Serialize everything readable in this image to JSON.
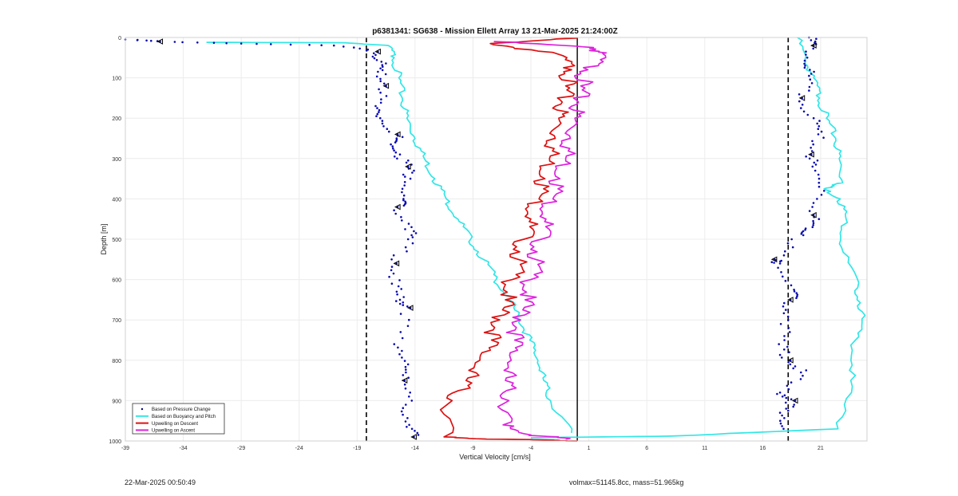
{
  "chart_data": {
    "type": "line",
    "title": "p6381341: SG638 - Mission Ellett Array 13 21-Mar-2025 21:24:00Z",
    "xlabel": "Vertical Velocity [cm/s]",
    "ylabel": "Depth [m]",
    "xlim": [
      -39,
      25
    ],
    "ylim": [
      0,
      1000
    ],
    "y_reversed": true,
    "grid": true,
    "x_ticks": [
      "-39",
      "-34",
      "-29",
      "-24",
      "-19",
      "-14",
      "-9",
      "-4",
      "1",
      "6",
      "11",
      "16",
      "21"
    ],
    "y_ticks": [
      "0",
      "100",
      "200",
      "300",
      "400",
      "500",
      "600",
      "700",
      "800",
      "900",
      "1000"
    ],
    "legend_position": "bottom-left",
    "legend": [
      {
        "label": "Based on Pressure Change",
        "color": "#000080",
        "style": "dot"
      },
      {
        "label": "Based on Buoyancy and Pitch",
        "color": "#33e6e6",
        "style": "line"
      },
      {
        "label": "Upwelling on Descent",
        "color": "#dd1111",
        "style": "line"
      },
      {
        "label": "Upwelling on Ascent",
        "color": "#dd22dd",
        "style": "line"
      }
    ],
    "reference_lines": {
      "dashed": [
        -18.2,
        18.2
      ],
      "solid": [
        0
      ]
    },
    "series": [
      {
        "name": "Based on Buoyancy and Pitch",
        "role": "buoyancy-descent",
        "color": "#33e6e6",
        "x": [
          -32,
          -20,
          -16.3,
          -15.8,
          -15.4,
          -15.1,
          -14.7,
          -14.0,
          -13.2,
          -12.3,
          -11.3,
          -10.3,
          -9.2,
          -8.1,
          -7.0,
          -5.9,
          -4.9,
          -4.1,
          -3.4,
          -2.9,
          -2.3,
          -0.5
        ],
        "y": [
          12,
          13,
          20,
          50,
          100,
          150,
          200,
          250,
          300,
          350,
          400,
          450,
          500,
          550,
          600,
          650,
          700,
          750,
          800,
          850,
          900,
          980
        ]
      },
      {
        "name": "Based on Buoyancy and Pitch",
        "role": "buoyancy-ascent",
        "color": "#33e6e6",
        "x": [
          19.0,
          19.7,
          20.4,
          20.9,
          21.5,
          22.3,
          22.6,
          22.9,
          21.3,
          22.7,
          23.2,
          22.8,
          24.2,
          24.6,
          24.0,
          23.6,
          22.5,
          8,
          -4
        ],
        "y": [
          0,
          60,
          100,
          150,
          200,
          250,
          300,
          360,
          375,
          400,
          450,
          520,
          620,
          680,
          750,
          850,
          970,
          988,
          992
        ]
      },
      {
        "name": "Upwelling on Descent",
        "role": "upwelling-descent",
        "color": "#dd1111",
        "x": [
          0.0,
          -7.5,
          -1.8,
          -0.5,
          -1.0,
          -1.3,
          -1.6,
          -1.9,
          -2.4,
          -2.8,
          -3.3,
          -4.0,
          -4.6,
          -5.1,
          -5.6,
          -6.2,
          -6.7,
          -7.4,
          -8.4,
          -9.6,
          -10.8,
          -11.5,
          -8.0,
          -2.0,
          0.0
        ],
        "y": [
          0,
          15,
          40,
          80,
          120,
          160,
          200,
          250,
          300,
          350,
          400,
          450,
          500,
          550,
          600,
          650,
          700,
          750,
          800,
          850,
          900,
          990,
          995,
          998,
          1000
        ]
      },
      {
        "name": "Upwelling on Ascent",
        "role": "upwelling-ascent",
        "color": "#dd22dd",
        "x": [
          -7.2,
          1.4,
          2.2,
          0.9,
          0.3,
          0.1,
          -0.2,
          -0.6,
          -1.0,
          -1.5,
          -2.1,
          -2.7,
          -3.1,
          -3.6,
          -4.0,
          -4.5,
          -4.9,
          -5.4,
          -5.7,
          -6.2,
          -5.9,
          -6.4,
          -4.0,
          -1.0
        ],
        "y": [
          10,
          25,
          40,
          80,
          120,
          160,
          200,
          250,
          300,
          350,
          400,
          450,
          500,
          550,
          600,
          650,
          700,
          750,
          800,
          850,
          900,
          960,
          985,
          995
        ]
      },
      {
        "name": "Based on Pressure Change",
        "role": "pressure-descent",
        "color": "#0a0ab0",
        "style": "dots",
        "x": [
          -39,
          -36,
          -29,
          -21,
          -17.2,
          -16.9,
          -17.2,
          -16.5,
          -17.4,
          -17.0,
          -15.5,
          -15.7,
          -15.3,
          -14.6,
          -14.4,
          -15.0,
          -15.5,
          -14.3,
          -14.6,
          -15.6,
          -16.0,
          -15.3,
          -14.4,
          -15.8,
          -14.6,
          -14.9,
          -14.8,
          -14.5,
          -14.1
        ],
        "y": [
          5,
          10,
          15,
          20,
          35,
          60,
          85,
          120,
          170,
          200,
          240,
          260,
          290,
          320,
          350,
          400,
          420,
          470,
          500,
          560,
          610,
          650,
          670,
          760,
          810,
          850,
          910,
          960,
          990
        ]
      },
      {
        "name": "Based on Pressure Change",
        "role": "pressure-ascent",
        "color": "#0a0ab0",
        "style": "dots",
        "x": [
          20.0,
          20.4,
          19.6,
          20.0,
          19.4,
          20.4,
          20.8,
          20.2,
          20.3,
          21.3,
          20.4,
          20.3,
          19.5,
          17.0,
          17.5,
          18.7,
          18.4,
          18.2,
          17.4,
          18.4,
          19.3,
          17.5,
          18.8,
          17.5,
          17.8
        ],
        "y": [
          0,
          20,
          65,
          95,
          150,
          200,
          240,
          290,
          320,
          380,
          440,
          470,
          490,
          550,
          560,
          625,
          650,
          700,
          760,
          800,
          830,
          880,
          900,
          930,
          970
        ]
      }
    ]
  },
  "footer": {
    "date": "22-Mar-2025 00:50:49",
    "params": "volmax=51145.8cc, mass=51.965kg"
  }
}
